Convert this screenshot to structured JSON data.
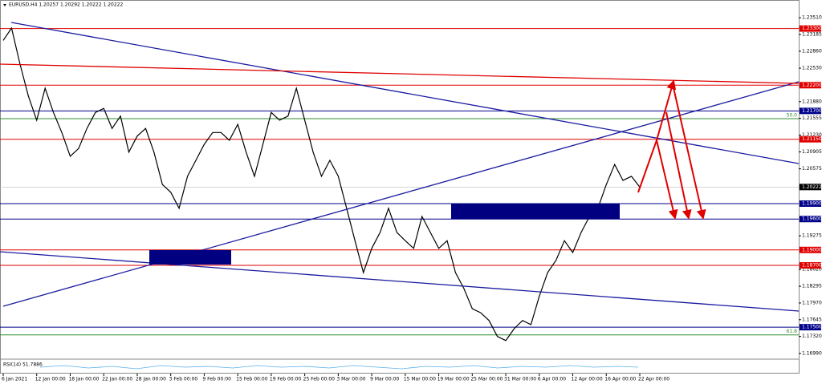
{
  "chart_data": {
    "type": "line",
    "title": "EURUSD,H4  1.20257 1.20292 1.20222 1.20222",
    "indicator": "RSI(14) 51.7886",
    "categories": [
      "6 Jan 2021",
      null,
      null,
      null,
      "12 Jan 00:00",
      null,
      null,
      null,
      "18 Jan 00:00",
      null,
      null,
      null,
      "22 Jan 00:00",
      null,
      null,
      null,
      "28 Jan 00:00",
      null,
      null,
      null,
      "3 Feb 00:00",
      null,
      null,
      null,
      "9 Feb 00:00",
      null,
      null,
      null,
      "15 Feb 00:00",
      null,
      null,
      null,
      "19 Feb 00:00",
      null,
      null,
      null,
      "25 Feb 00:00",
      null,
      null,
      null,
      "3 Mar 00:00",
      null,
      null,
      null,
      "9 Mar 00:00",
      null,
      null,
      null,
      "15 Mar 00:00",
      null,
      null,
      null,
      "19 Mar 00:00",
      null,
      null,
      null,
      "25 Mar 00:00",
      null,
      null,
      null,
      "31 Mar 00:00",
      null,
      null,
      null,
      "6 Apr 00:00",
      null,
      null,
      null,
      "12 Apr 00:00",
      null,
      null,
      null,
      "16 Apr 00:00",
      null,
      null,
      null,
      "22 Apr 00:00"
    ],
    "series": [
      {
        "name": "EURUSD,H4",
        "color": "#000000",
        "values": [
          1.2307,
          1.2331,
          1.2261,
          1.2199,
          1.2152,
          1.2214,
          1.2167,
          1.2128,
          1.2082,
          1.2097,
          1.2136,
          1.2167,
          1.2175,
          1.2136,
          1.216,
          1.209,
          1.2121,
          1.2136,
          1.209,
          1.2027,
          1.2012,
          1.1981,
          1.2043,
          1.2074,
          1.2105,
          1.2128,
          1.2128,
          1.2113,
          1.2144,
          1.209,
          1.2043,
          1.2105,
          1.2167,
          1.2152,
          1.216,
          1.2214,
          1.2152,
          1.209,
          1.2043,
          1.2074,
          1.2043,
          1.1981,
          1.1918,
          1.1856,
          1.1903,
          1.1934,
          1.1981,
          1.1934,
          1.1918,
          1.1903,
          1.1965,
          1.1934,
          1.1903,
          1.1918,
          1.1856,
          1.1825,
          1.1786,
          1.1778,
          1.1763,
          1.1732,
          1.1724,
          1.1747,
          1.1763,
          1.1755,
          1.181,
          1.1856,
          1.188,
          1.1918,
          1.1895,
          1.1934,
          1.1965,
          1.1981,
          1.2027,
          1.2066,
          1.2035,
          1.2043,
          1.2022
        ]
      }
    ],
    "ylim": [
      1.1691,
      1.2373
    ],
    "yticks": [
      {
        "value": 1.2351,
        "label": "1.23510"
      },
      {
        "value": 1.23185,
        "label": "1.23185"
      },
      {
        "value": 1.2286,
        "label": "1.22860"
      },
      {
        "value": 1.2253,
        "label": "1.22530"
      },
      {
        "value": 1.2188,
        "label": "1.21880"
      },
      {
        "value": 1.21555,
        "label": "1.21555"
      },
      {
        "value": 1.2123,
        "label": "1.21230"
      },
      {
        "value": 1.20905,
        "label": "1.20905"
      },
      {
        "value": 1.20575,
        "label": "1.20575"
      },
      {
        "value": 1.19275,
        "label": "1.19275"
      },
      {
        "value": 1.1862,
        "label": "1.18620"
      },
      {
        "value": 1.18295,
        "label": "1.18295"
      },
      {
        "value": 1.1797,
        "label": "1.17970"
      },
      {
        "value": 1.17645,
        "label": "1.17645"
      },
      {
        "value": 1.1732,
        "label": "1.17320"
      },
      {
        "value": 1.1699,
        "label": "1.16990"
      }
    ],
    "current": {
      "value": 1.20222,
      "label": "1.20222"
    },
    "levels": [
      {
        "value": 1.233,
        "label": "1.23300",
        "color": "#e00000"
      },
      {
        "value": 1.222,
        "label": "1.22200",
        "color": "#e00000"
      },
      {
        "value": 1.217,
        "label": "1.21700",
        "color": "#00008b"
      },
      {
        "value": 1.2115,
        "label": "1.21150",
        "color": "#e00000"
      },
      {
        "value": 1.199,
        "label": "1.19900",
        "color": "#00008b"
      },
      {
        "value": 1.196,
        "label": "1.19600",
        "color": "#00008b"
      },
      {
        "value": 1.19,
        "label": "1.19000",
        "color": "#e00000"
      },
      {
        "value": 1.187,
        "label": "1.18700",
        "color": "#e00000"
      },
      {
        "value": 1.175,
        "label": "1.17500",
        "color": "#00008b"
      }
    ],
    "fib_levels": [
      {
        "price": 1.2155,
        "name": "50.0"
      },
      {
        "price": 1.1735,
        "name": "61.8"
      }
    ]
  }
}
